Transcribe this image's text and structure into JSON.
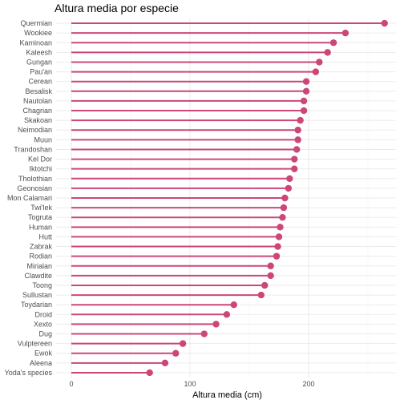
{
  "chart_data": {
    "type": "lollipop",
    "title": "Altura media por especie",
    "xlabel": "Altura media (cm)",
    "ylabel": "",
    "xlim": [
      0,
      270
    ],
    "xticks": [
      0,
      100,
      200
    ],
    "grid": true,
    "color": "#cc4778",
    "categories": [
      "Quermian",
      "Wookiee",
      "Kaminoan",
      "Kaleesh",
      "Gungan",
      "Pau'an",
      "Cerean",
      "Besalisk",
      "Nautolan",
      "Chagrian",
      "Skakoan",
      "Neimodian",
      "Muun",
      "Trandoshan",
      "Kel Dor",
      "Iktotchi",
      "Tholothian",
      "Geonosian",
      "Mon Calamari",
      "Twi'lek",
      "Togruta",
      "Human",
      "Hutt",
      "Zabrak",
      "Rodian",
      "Mirialan",
      "Clawdite",
      "Toong",
      "Sullustan",
      "Toydarian",
      "Droid",
      "Xexto",
      "Dug",
      "Vulptereen",
      "Ewok",
      "Aleena",
      "Yoda's species"
    ],
    "values": [
      264,
      231,
      221,
      216,
      209,
      206,
      198,
      198,
      196,
      196,
      193,
      191,
      191,
      190,
      188,
      188,
      184,
      183,
      180,
      179,
      178,
      176,
      175,
      174,
      173,
      168,
      168,
      163,
      160,
      137,
      131,
      122,
      112,
      94,
      88,
      79,
      66
    ]
  }
}
